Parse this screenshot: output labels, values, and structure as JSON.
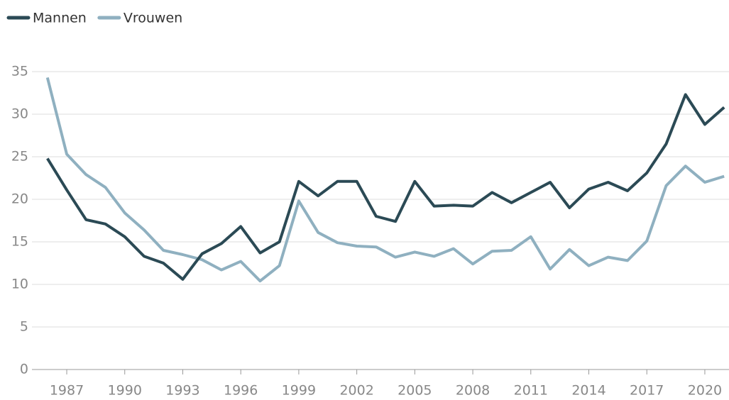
{
  "chart_data": {
    "type": "line",
    "x": [
      1986,
      1987,
      1988,
      1989,
      1990,
      1991,
      1992,
      1993,
      1994,
      1995,
      1996,
      1997,
      1998,
      1999,
      2000,
      2001,
      2002,
      2003,
      2004,
      2005,
      2006,
      2007,
      2008,
      2009,
      2010,
      2011,
      2012,
      2013,
      2014,
      2015,
      2016,
      2017,
      2018,
      2019,
      2020,
      2021
    ],
    "series": [
      {
        "name": "Mannen",
        "color": "#2b4a55",
        "values": [
          24.8,
          21.1,
          17.6,
          17.1,
          15.6,
          13.3,
          12.5,
          10.6,
          13.6,
          14.8,
          16.8,
          13.7,
          15.0,
          22.1,
          20.4,
          22.1,
          22.1,
          18.0,
          17.4,
          22.1,
          19.2,
          19.3,
          19.2,
          20.8,
          19.6,
          20.8,
          22.0,
          19.0,
          21.2,
          22.0,
          21.0,
          23.1,
          26.5,
          32.3,
          28.8,
          30.8
        ]
      },
      {
        "name": "Vrouwen",
        "color": "#8fb0c0",
        "values": [
          34.3,
          25.3,
          22.9,
          21.4,
          18.4,
          16.4,
          14.0,
          13.5,
          12.9,
          11.7,
          12.7,
          10.4,
          12.2,
          19.8,
          16.1,
          14.9,
          14.5,
          14.4,
          13.2,
          13.8,
          13.3,
          14.2,
          12.4,
          13.9,
          14.0,
          15.6,
          11.8,
          14.1,
          12.2,
          13.2,
          12.8,
          15.1,
          21.6,
          23.9,
          22.0,
          22.7
        ]
      }
    ],
    "xlim": [
      1985.2,
      2021.25
    ],
    "xticks": [
      1987,
      1990,
      1993,
      1996,
      1999,
      2002,
      2005,
      2008,
      2011,
      2014,
      2017,
      2020
    ],
    "ylim": [
      0,
      35
    ],
    "yticks": [
      0,
      5,
      10,
      15,
      20,
      25,
      30,
      35
    ],
    "grid": true
  }
}
